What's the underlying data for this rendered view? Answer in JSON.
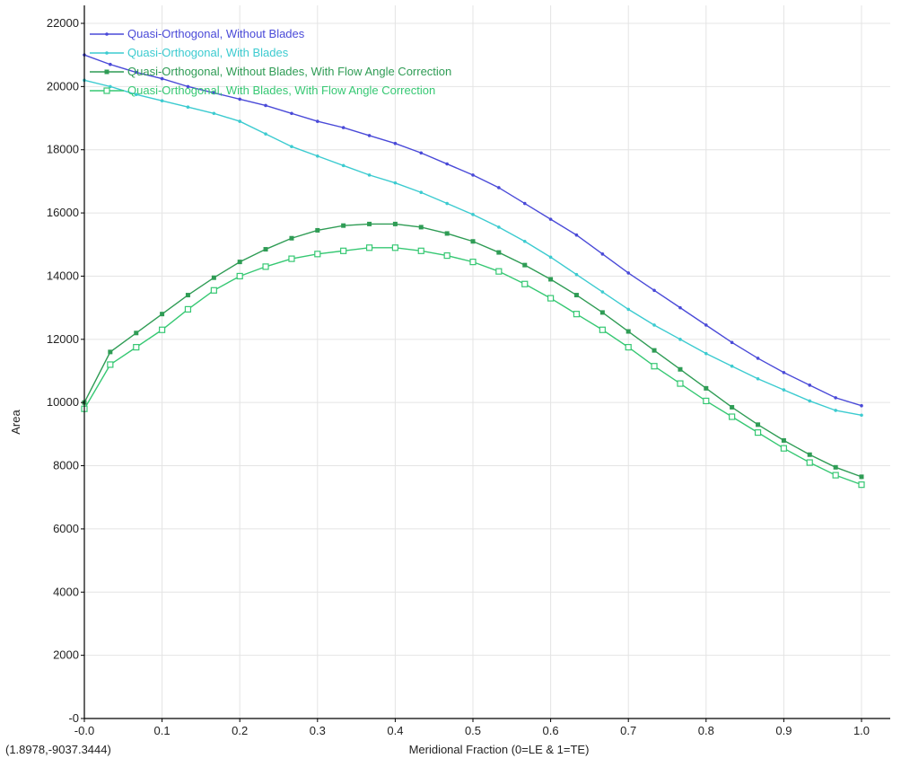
{
  "coordinate_readout": "(1.8978,-9037.3444)",
  "colors": {
    "background": "#ffffff",
    "grid": "#e4e4e4",
    "axis": "#000000",
    "text": "#222222"
  },
  "chart_data": {
    "type": "line",
    "title": "",
    "xlabel": "Meridional Fraction (0=LE & 1=TE)",
    "ylabel": "Area",
    "xlim": [
      0,
      1
    ],
    "ylim": [
      0,
      22000
    ],
    "x_ticks": [
      0,
      0.1,
      0.2,
      0.3,
      0.4,
      0.5,
      0.6,
      0.7,
      0.8,
      0.9,
      1.0
    ],
    "x_tick_labels": [
      "-0.0",
      "0.1",
      "0.2",
      "0.3",
      "0.4",
      "0.5",
      "0.6",
      "0.7",
      "0.8",
      "0.9",
      "1.0"
    ],
    "y_ticks": [
      0,
      2000,
      4000,
      6000,
      8000,
      10000,
      12000,
      14000,
      16000,
      18000,
      20000,
      22000
    ],
    "y_tick_labels": [
      "-0",
      "2000",
      "4000",
      "6000",
      "8000",
      "10000",
      "12000",
      "14000",
      "16000",
      "18000",
      "20000",
      "22000"
    ],
    "grid": true,
    "legend_position": "top-left",
    "x": [
      0,
      0.0333,
      0.0667,
      0.1,
      0.1333,
      0.1667,
      0.2,
      0.2333,
      0.2667,
      0.3,
      0.3333,
      0.3667,
      0.4,
      0.4333,
      0.4667,
      0.5,
      0.5333,
      0.5667,
      0.6,
      0.6333,
      0.6667,
      0.7,
      0.7333,
      0.7667,
      0.8,
      0.8333,
      0.8667,
      0.9,
      0.9333,
      0.9667,
      1.0
    ],
    "series": [
      {
        "name": "Quasi-Orthogonal, Without Blades",
        "color": "#4a4ad8",
        "marker": "dot",
        "values": [
          21000,
          20700,
          20450,
          20250,
          20000,
          19800,
          19600,
          19400,
          19150,
          18900,
          18700,
          18450,
          18200,
          17900,
          17550,
          17200,
          16800,
          16300,
          15800,
          15300,
          14700,
          14100,
          13550,
          13000,
          12450,
          11900,
          11400,
          10950,
          10550,
          10150,
          9900
        ]
      },
      {
        "name": "Quasi-Orthogonal, With Blades",
        "color": "#3ccbd0",
        "marker": "dot",
        "values": [
          20200,
          20000,
          19750,
          19550,
          19350,
          19150,
          18900,
          18500,
          18100,
          17800,
          17500,
          17200,
          16950,
          16650,
          16300,
          15950,
          15550,
          15100,
          14600,
          14050,
          13500,
          12950,
          12450,
          12000,
          11550,
          11150,
          10750,
          10400,
          10050,
          9750,
          9600
        ]
      },
      {
        "name": "Quasi-Orthogonal, Without Blades, With Flow Angle Correction",
        "color": "#2f9c55",
        "marker": "filled-square",
        "values": [
          10000,
          11600,
          12200,
          12800,
          13400,
          13950,
          14450,
          14850,
          15200,
          15450,
          15600,
          15650,
          15650,
          15550,
          15350,
          15100,
          14750,
          14350,
          13900,
          13400,
          12850,
          12250,
          11650,
          11050,
          10450,
          9850,
          9300,
          8800,
          8350,
          7950,
          7650
        ]
      },
      {
        "name": "Quasi-Orthogonal, With Blades, With Flow Angle Correction",
        "color": "#36c873",
        "marker": "open-square",
        "values": [
          9800,
          11200,
          11750,
          12300,
          12950,
          13550,
          14000,
          14300,
          14550,
          14700,
          14800,
          14900,
          14900,
          14800,
          14650,
          14450,
          14150,
          13750,
          13300,
          12800,
          12300,
          11750,
          11150,
          10600,
          10050,
          9550,
          9050,
          8550,
          8100,
          7700,
          7400
        ]
      }
    ]
  }
}
